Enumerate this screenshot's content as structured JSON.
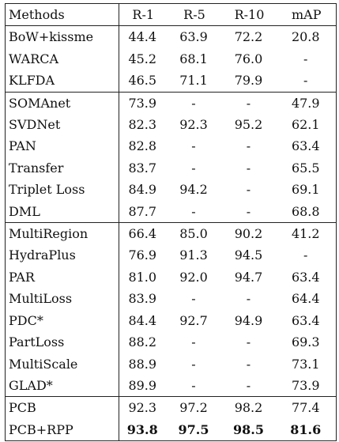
{
  "columns": [
    "Methods",
    "R-1",
    "R-5",
    "R-10",
    "mAP"
  ],
  "groups": [
    [
      {
        "method": "BoW+kissme",
        "r1": "44.4",
        "r5": "63.9",
        "r10": "72.2",
        "map": "20.8"
      },
      {
        "method": "WARCA",
        "r1": "45.2",
        "r5": "68.1",
        "r10": "76.0",
        "map": "-"
      },
      {
        "method": "KLFDA",
        "r1": "46.5",
        "r5": "71.1",
        "r10": "79.9",
        "map": "-"
      }
    ],
    [
      {
        "method": "SOMAnet",
        "r1": "73.9",
        "r5": "-",
        "r10": "-",
        "map": "47.9"
      },
      {
        "method": "SVDNet",
        "r1": "82.3",
        "r5": "92.3",
        "r10": "95.2",
        "map": "62.1"
      },
      {
        "method": "PAN",
        "r1": "82.8",
        "r5": "-",
        "r10": "-",
        "map": "63.4"
      },
      {
        "method": "Transfer",
        "r1": "83.7",
        "r5": "-",
        "r10": "-",
        "map": "65.5"
      },
      {
        "method": "Triplet Loss",
        "r1": "84.9",
        "r5": "94.2",
        "r10": "-",
        "map": "69.1"
      },
      {
        "method": "DML",
        "r1": "87.7",
        "r5": "-",
        "r10": "-",
        "map": "68.8"
      }
    ],
    [
      {
        "method": "MultiRegion",
        "r1": "66.4",
        "r5": "85.0",
        "r10": "90.2",
        "map": "41.2"
      },
      {
        "method": "HydraPlus",
        "r1": "76.9",
        "r5": "91.3",
        "r10": "94.5",
        "map": "-"
      },
      {
        "method": "PAR",
        "r1": "81.0",
        "r5": "92.0",
        "r10": "94.7",
        "map": "63.4"
      },
      {
        "method": "MultiLoss",
        "r1": "83.9",
        "r5": "-",
        "r10": "-",
        "map": "64.4"
      },
      {
        "method": "PDC*",
        "r1": "84.4",
        "r5": "92.7",
        "r10": "94.9",
        "map": "63.4"
      },
      {
        "method": "PartLoss",
        "r1": "88.2",
        "r5": "-",
        "r10": "-",
        "map": "69.3"
      },
      {
        "method": "MultiScale",
        "r1": "88.9",
        "r5": "-",
        "r10": "-",
        "map": "73.1"
      },
      {
        "method": "GLAD*",
        "r1": "89.9",
        "r5": "-",
        "r10": "-",
        "map": "73.9"
      }
    ],
    [
      {
        "method": "PCB",
        "r1": "92.3",
        "r5": "97.2",
        "r10": "98.2",
        "map": "77.4"
      },
      {
        "method": "PCB+RPP",
        "r1": "93.8",
        "r5": "97.5",
        "r10": "98.5",
        "map": "81.6",
        "bold": true
      }
    ]
  ]
}
